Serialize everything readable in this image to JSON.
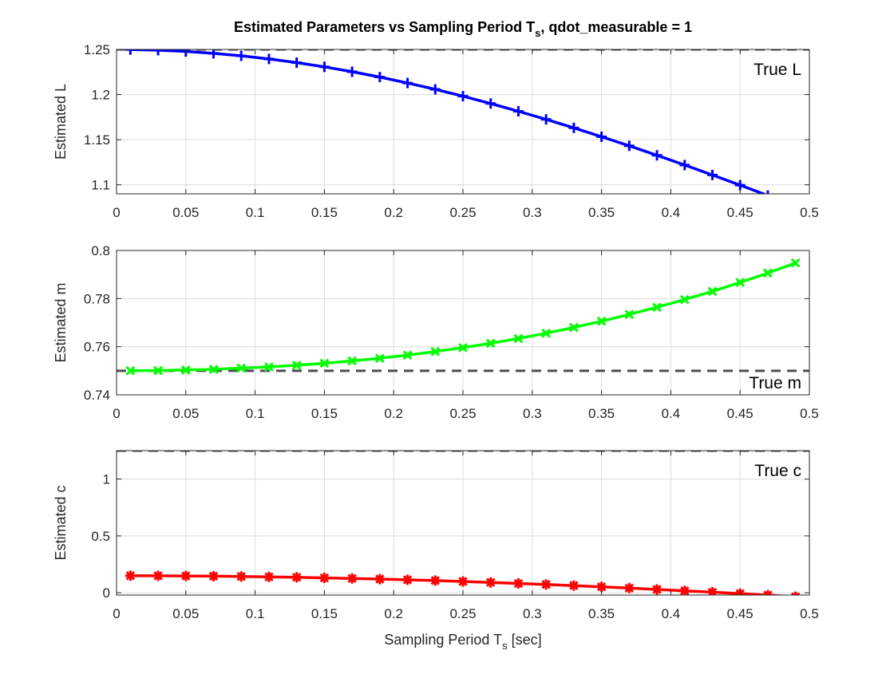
{
  "figure": {
    "title_main": "Estimated Parameters vs Sampling Period T",
    "title_sub": "s",
    "title_rest": ", qdot_measurable = 1",
    "xlabel_main": "Sampling Period T",
    "xlabel_sub": "s",
    "xlabel_rest": " [sec]"
  },
  "chart_data": [
    {
      "type": "line",
      "ylabel": "Estimated L",
      "xlim": [
        0,
        0.5
      ],
      "ylim": [
        1.09,
        1.25
      ],
      "grid": true,
      "xticks": [
        0,
        0.05,
        0.1,
        0.15,
        0.2,
        0.25,
        0.3,
        0.35,
        0.4,
        0.45,
        0.5
      ],
      "xtick_labels": [
        "0",
        "0.05",
        "0.1",
        "0.15",
        "0.2",
        "0.25",
        "0.3",
        "0.35",
        "0.4",
        "0.45",
        "0.5"
      ],
      "yticks": [
        1.1,
        1.15,
        1.2,
        1.25
      ],
      "ytick_labels": [
        "1.1",
        "1.15",
        "1.2",
        "1.25"
      ],
      "marker": "plus",
      "color": "#0000ff",
      "x": [
        0.01,
        0.03,
        0.05,
        0.07,
        0.09,
        0.11,
        0.13,
        0.15,
        0.17,
        0.19,
        0.21,
        0.23,
        0.25,
        0.27,
        0.29,
        0.31,
        0.33,
        0.35,
        0.37,
        0.39,
        0.41,
        0.43,
        0.45,
        0.47,
        0.49
      ],
      "y": [
        1.2499,
        1.2492,
        1.2478,
        1.2457,
        1.2429,
        1.2395,
        1.2354,
        1.2307,
        1.2253,
        1.2194,
        1.2128,
        1.2058,
        1.1982,
        1.1901,
        1.1815,
        1.1725,
        1.1631,
        1.1533,
        1.1432,
        1.1327,
        1.1219,
        1.1109,
        1.0996,
        1.0881,
        1.0764
      ],
      "reference": {
        "value": 1.25,
        "label": "True L",
        "color": "#4d4d4d"
      }
    },
    {
      "type": "line",
      "ylabel": "Estimated m",
      "xlim": [
        0,
        0.5
      ],
      "ylim": [
        0.74,
        0.8
      ],
      "grid": true,
      "xticks": [
        0,
        0.05,
        0.1,
        0.15,
        0.2,
        0.25,
        0.3,
        0.35,
        0.4,
        0.45,
        0.5
      ],
      "xtick_labels": [
        "0",
        "0.05",
        "0.1",
        "0.15",
        "0.2",
        "0.25",
        "0.3",
        "0.35",
        "0.4",
        "0.45",
        "0.5"
      ],
      "yticks": [
        0.74,
        0.76,
        0.78,
        0.8
      ],
      "ytick_labels": [
        "0.74",
        "0.76",
        "0.78",
        "0.8"
      ],
      "marker": "x",
      "color": "#00ff00",
      "x": [
        0.01,
        0.03,
        0.05,
        0.07,
        0.09,
        0.11,
        0.13,
        0.15,
        0.17,
        0.19,
        0.21,
        0.23,
        0.25,
        0.27,
        0.29,
        0.31,
        0.33,
        0.35,
        0.37,
        0.39,
        0.41,
        0.43,
        0.45,
        0.47,
        0.49
      ],
      "y": [
        0.75,
        0.7501,
        0.7503,
        0.7506,
        0.7511,
        0.7516,
        0.7523,
        0.7531,
        0.7541,
        0.7552,
        0.7565,
        0.758,
        0.7596,
        0.7614,
        0.7634,
        0.7656,
        0.768,
        0.7706,
        0.7734,
        0.7764,
        0.7796,
        0.783,
        0.7867,
        0.7906,
        0.7948
      ],
      "reference": {
        "value": 0.75,
        "label": "True m",
        "color": "#4d4d4d"
      }
    },
    {
      "type": "line",
      "ylabel": "Estimated c",
      "xlim": [
        0,
        0.5
      ],
      "ylim": [
        -0.02,
        1.25
      ],
      "grid": true,
      "xticks": [
        0,
        0.05,
        0.1,
        0.15,
        0.2,
        0.25,
        0.3,
        0.35,
        0.4,
        0.45,
        0.5
      ],
      "xtick_labels": [
        "0",
        "0.05",
        "0.1",
        "0.15",
        "0.2",
        "0.25",
        "0.3",
        "0.35",
        "0.4",
        "0.45",
        "0.5"
      ],
      "yticks": [
        0,
        0.5,
        1
      ],
      "ytick_labels": [
        "0",
        "0.5",
        "1"
      ],
      "marker": "asterisk",
      "color": "#ff0000",
      "x": [
        0.01,
        0.03,
        0.05,
        0.07,
        0.09,
        0.11,
        0.13,
        0.15,
        0.17,
        0.19,
        0.21,
        0.23,
        0.25,
        0.27,
        0.29,
        0.31,
        0.33,
        0.35,
        0.37,
        0.39,
        0.41,
        0.43,
        0.45,
        0.47,
        0.49
      ],
      "y": [
        0.15,
        0.149,
        0.148,
        0.146,
        0.143,
        0.14,
        0.136,
        0.131,
        0.126,
        0.12,
        0.114,
        0.107,
        0.099,
        0.091,
        0.082,
        0.073,
        0.063,
        0.052,
        0.041,
        0.029,
        0.017,
        0.005,
        -0.008,
        -0.021,
        -0.035
      ],
      "reference": {
        "value": 1.25,
        "label": "True c",
        "color": "#4d4d4d"
      }
    }
  ]
}
